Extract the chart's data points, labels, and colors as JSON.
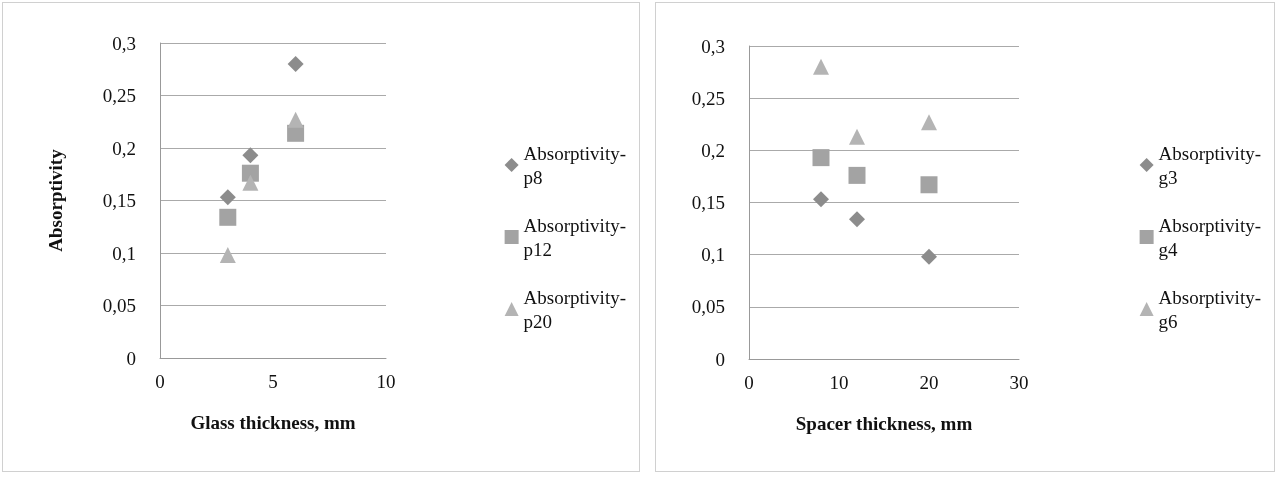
{
  "chart_data": [
    {
      "type": "scatter",
      "xlabel": "Glass thickness, mm",
      "ylabel": "Absorptivity",
      "x": [
        3,
        4,
        6
      ],
      "series": [
        {
          "name": "Absorptivity-p8",
          "color": "#8c8c8c",
          "marker": "diamond",
          "values": [
            0.153,
            0.193,
            0.28
          ]
        },
        {
          "name": "Absorptivity-p12",
          "color": "#a3a3a3",
          "marker": "square",
          "values": [
            0.134,
            0.176,
            0.214
          ]
        },
        {
          "name": "Absorptivity-p20",
          "color": "#b4b4b4",
          "marker": "triangle",
          "values": [
            0.098,
            0.167,
            0.227
          ]
        }
      ],
      "xlim": [
        0,
        10
      ],
      "xticks": [
        0,
        5,
        10
      ],
      "ylim": [
        0,
        0.3
      ],
      "yticks": [
        {
          "value": 0,
          "label": "0"
        },
        {
          "value": 0.05,
          "label": "0,05"
        },
        {
          "value": 0.1,
          "label": "0,1"
        },
        {
          "value": 0.15,
          "label": "0,15"
        },
        {
          "value": 0.2,
          "label": "0,2"
        },
        {
          "value": 0.25,
          "label": "0,25"
        },
        {
          "value": 0.3,
          "label": "0,3"
        }
      ],
      "grid": "y",
      "legend": "right"
    },
    {
      "type": "scatter",
      "xlabel": "Spacer thickness, mm",
      "x": [
        8,
        12,
        20
      ],
      "series": [
        {
          "name": "Absorptivity-g3",
          "color": "#8c8c8c",
          "marker": "diamond",
          "values": [
            0.153,
            0.134,
            0.098
          ]
        },
        {
          "name": "Absorptivity-g4",
          "color": "#a3a3a3",
          "marker": "square",
          "values": [
            0.193,
            0.176,
            0.167
          ]
        },
        {
          "name": "Absorptivity-g6",
          "color": "#b4b4b4",
          "marker": "triangle",
          "values": [
            0.28,
            0.213,
            0.227
          ]
        }
      ],
      "xlim": [
        0,
        30
      ],
      "xticks": [
        0,
        10,
        20,
        30
      ],
      "ylim": [
        0,
        0.3
      ],
      "yticks": [
        {
          "value": 0,
          "label": "0"
        },
        {
          "value": 0.05,
          "label": "0,05"
        },
        {
          "value": 0.1,
          "label": "0,1"
        },
        {
          "value": 0.15,
          "label": "0,15"
        },
        {
          "value": 0.2,
          "label": "0,2"
        },
        {
          "value": 0.25,
          "label": "0,25"
        },
        {
          "value": 0.3,
          "label": "0,3"
        }
      ],
      "grid": "y",
      "legend": "right"
    }
  ]
}
